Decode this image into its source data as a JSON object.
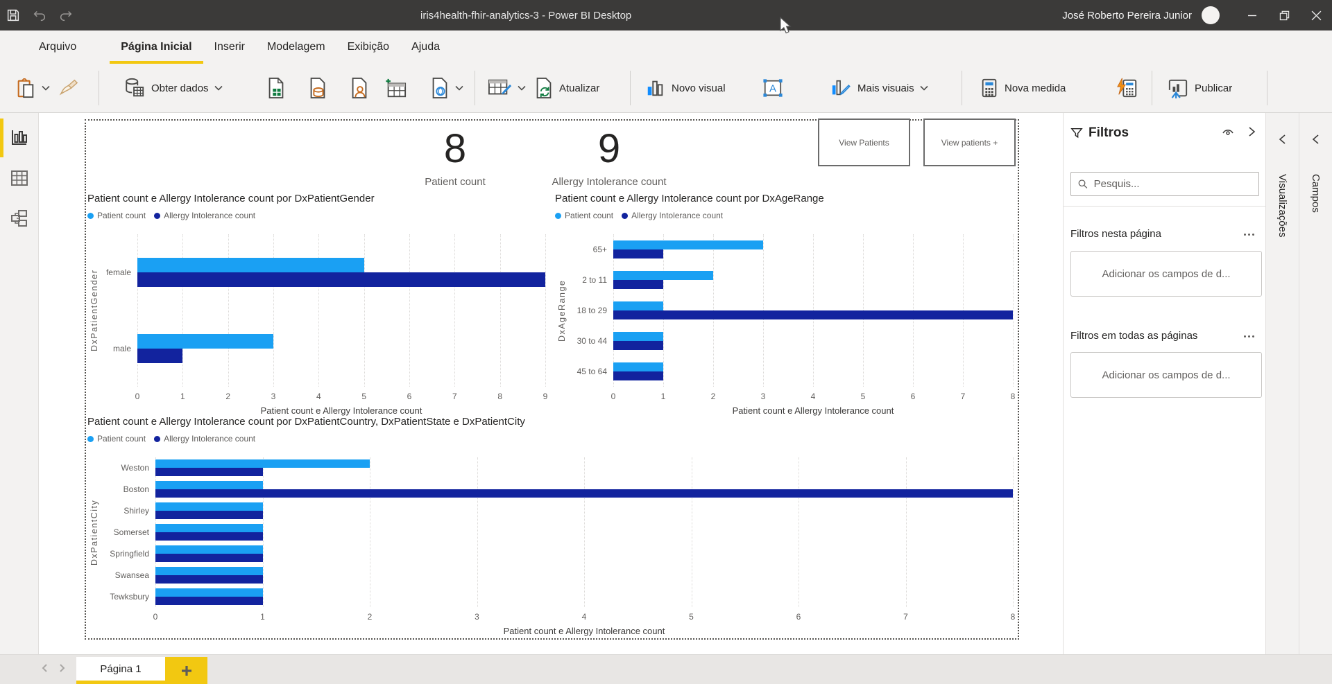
{
  "titlebar": {
    "title": "iris4health-fhir-analytics-3 - Power BI Desktop",
    "user_name": "José Roberto Pereira Junior"
  },
  "ribbon": {
    "file_tab": "Arquivo",
    "tabs": [
      "Página Inicial",
      "Inserir",
      "Modelagem",
      "Exibição",
      "Ajuda"
    ],
    "active_tab": "Página Inicial",
    "toolbar": {
      "obter_dados": "Obter dados",
      "atualizar": "Atualizar",
      "novo_visual": "Novo visual",
      "mais_visuais": "Mais visuais",
      "nova_medida": "Nova medida",
      "publicar": "Publicar"
    }
  },
  "kpis": [
    {
      "value": "8",
      "label": "Patient count"
    },
    {
      "value": "9",
      "label": "Allergy Intolerance count"
    }
  ],
  "action_buttons": [
    {
      "label": "View Patients"
    },
    {
      "label": "View patients +"
    }
  ],
  "chart_data": [
    {
      "type": "bar",
      "orientation": "horizontal",
      "title": "Patient count e Allergy Intolerance count por DxPatientGender",
      "categories": [
        "female",
        "male"
      ],
      "series": [
        {
          "name": "Patient count",
          "color": "#1AA0F3",
          "values": [
            5,
            3
          ]
        },
        {
          "name": "Allergy Intolerance count",
          "color": "#12239E",
          "values": [
            9,
            1
          ]
        }
      ],
      "xlabel": "Patient count e Allergy Intolerance count",
      "ylabel": "DxPatientGender",
      "xlim": [
        0,
        9
      ],
      "xticks": [
        0,
        1,
        2,
        3,
        4,
        5,
        6,
        7,
        8,
        9
      ],
      "grid": true,
      "legend_position": "top"
    },
    {
      "type": "bar",
      "orientation": "horizontal",
      "title": "Patient count e Allergy Intolerance count por DxAgeRange",
      "categories": [
        "65+",
        "2 to 11",
        "18 to 29",
        "30 to 44",
        "45 to 64"
      ],
      "series": [
        {
          "name": "Patient count",
          "color": "#1AA0F3",
          "values": [
            3,
            2,
            1,
            1,
            1
          ]
        },
        {
          "name": "Allergy Intolerance count",
          "color": "#12239E",
          "values": [
            1,
            1,
            8,
            1,
            1
          ]
        }
      ],
      "xlabel": "Patient count e Allergy Intolerance count",
      "ylabel": "DxAgeRange",
      "xlim": [
        0,
        8
      ],
      "xticks": [
        0,
        1,
        2,
        3,
        4,
        5,
        6,
        7,
        8
      ],
      "grid": true,
      "legend_position": "top"
    },
    {
      "type": "bar",
      "orientation": "horizontal",
      "title": "Patient count e Allergy Intolerance count por DxPatientCountry, DxPatientState e DxPatientCity",
      "categories": [
        "Weston",
        "Boston",
        "Shirley",
        "Somerset",
        "Springfield",
        "Swansea",
        "Tewksbury"
      ],
      "series": [
        {
          "name": "Patient count",
          "color": "#1AA0F3",
          "values": [
            2,
            1,
            1,
            1,
            1,
            1,
            1
          ]
        },
        {
          "name": "Allergy Intolerance count",
          "color": "#12239E",
          "values": [
            1,
            8,
            1,
            1,
            1,
            1,
            1
          ]
        }
      ],
      "xlabel": "Patient count e Allergy Intolerance count",
      "ylabel": "DxPatientCity",
      "xlim": [
        0,
        8
      ],
      "xticks": [
        0,
        1,
        2,
        3,
        4,
        5,
        6,
        7,
        8
      ],
      "grid": true,
      "legend_position": "top"
    }
  ],
  "filters_panel": {
    "title": "Filtros",
    "search_placeholder": "Pesquis...",
    "sections": [
      {
        "label": "Filtros nesta página",
        "placeholder": "Adicionar os campos de d..."
      },
      {
        "label": "Filtros em todas as páginas",
        "placeholder": "Adicionar os campos de d..."
      }
    ]
  },
  "collapsed_panels": [
    {
      "label": "Visualizações"
    },
    {
      "label": "Campos"
    }
  ],
  "pages_bar": {
    "page_label": "Página 1"
  },
  "colors": {
    "accent_yellow": "#F2C811",
    "series_patient": "#1AA0F3",
    "series_allergy": "#12239E",
    "titlebar_bg": "#3B3A39"
  }
}
